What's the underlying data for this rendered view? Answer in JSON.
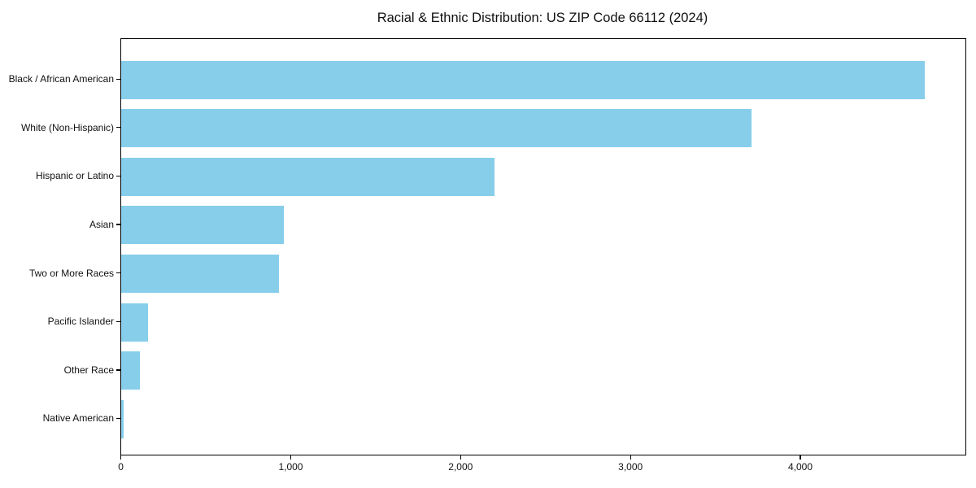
{
  "chart_data": {
    "type": "bar",
    "orientation": "horizontal",
    "title": "Racial & Ethnic Distribution: US ZIP Code 66112 (2024)",
    "categories": [
      "Black / African American",
      "White (Non-Hispanic)",
      "Hispanic or Latino",
      "Asian",
      "Two or More Races",
      "Pacific Islander",
      "Other Race",
      "Native American"
    ],
    "values": [
      4730,
      3710,
      2200,
      960,
      930,
      160,
      110,
      15
    ],
    "xlabel": "",
    "ylabel": "",
    "xlim": [
      0,
      4970
    ],
    "x_ticks": [
      0,
      1000,
      2000,
      3000,
      4000
    ],
    "x_tick_labels": [
      "0",
      "1,000",
      "2,000",
      "3,000",
      "4,000"
    ],
    "bar_color": "#87CEEB",
    "axis_color": "#000000",
    "grid": false,
    "legend": null
  }
}
